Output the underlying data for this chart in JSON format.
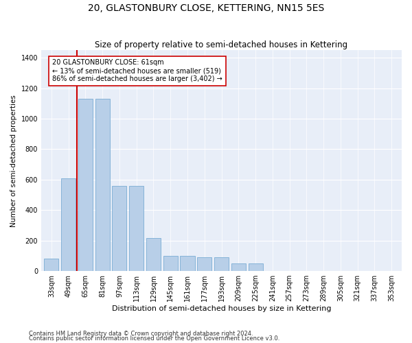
{
  "title": "20, GLASTONBURY CLOSE, KETTERING, NN15 5ES",
  "subtitle": "Size of property relative to semi-detached houses in Kettering",
  "xlabel": "Distribution of semi-detached houses by size in Kettering",
  "ylabel": "Number of semi-detached properties",
  "categories": [
    "33sqm",
    "49sqm",
    "65sqm",
    "81sqm",
    "97sqm",
    "113sqm",
    "129sqm",
    "145sqm",
    "161sqm",
    "177sqm",
    "193sqm",
    "209sqm",
    "225sqm",
    "241sqm",
    "257sqm",
    "273sqm",
    "289sqm",
    "305sqm",
    "321sqm",
    "337sqm",
    "353sqm"
  ],
  "values": [
    80,
    610,
    1130,
    1130,
    560,
    560,
    215,
    100,
    100,
    90,
    90,
    50,
    50,
    0,
    0,
    0,
    0,
    0,
    0,
    0,
    0
  ],
  "bar_color": "#b8cfe8",
  "bar_edge_color": "#7aacd4",
  "bar_width": 0.85,
  "vline_x": 1.5,
  "vline_color": "#cc0000",
  "annotation_text": "20 GLASTONBURY CLOSE: 61sqm\n← 13% of semi-detached houses are smaller (519)\n86% of semi-detached houses are larger (3,402) →",
  "annotation_box_color": "#ffffff",
  "annotation_box_edge": "#cc0000",
  "ylim": [
    0,
    1450
  ],
  "yticks": [
    0,
    200,
    400,
    600,
    800,
    1000,
    1200,
    1400
  ],
  "background_color": "#e8eef8",
  "footer1": "Contains HM Land Registry data © Crown copyright and database right 2024.",
  "footer2": "Contains public sector information licensed under the Open Government Licence v3.0.",
  "title_fontsize": 10,
  "subtitle_fontsize": 8.5,
  "xlabel_fontsize": 8,
  "ylabel_fontsize": 7.5,
  "tick_fontsize": 7,
  "footer_fontsize": 6,
  "annot_fontsize": 7
}
